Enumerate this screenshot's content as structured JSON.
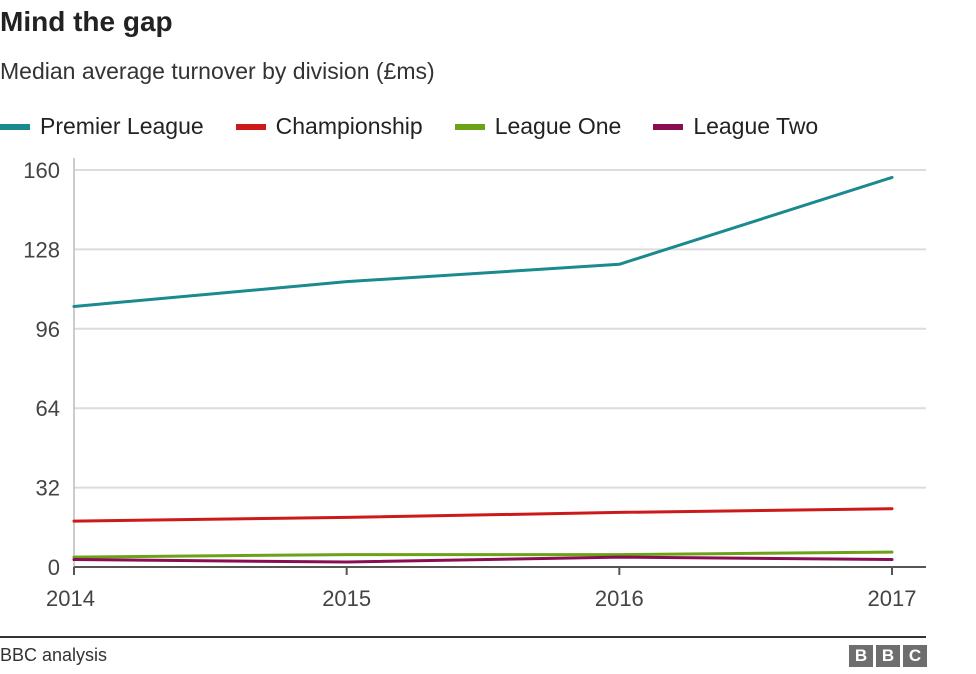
{
  "chart_data": {
    "type": "line",
    "title": "Mind the gap",
    "subtitle": "Median average turnover by division (£ms)",
    "categories": [
      "2014",
      "2015",
      "2016",
      "2017"
    ],
    "ylim": [
      0,
      160
    ],
    "yticks": [
      0,
      32,
      64,
      96,
      128,
      160
    ],
    "grid": true,
    "legend_position": "top-left",
    "series": [
      {
        "name": "Premier League",
        "color": "#1a8a8f",
        "values": [
          105,
          115,
          122,
          157
        ]
      },
      {
        "name": "Championship",
        "color": "#cc1a1a",
        "values": [
          18.5,
          20,
          22,
          23.5
        ]
      },
      {
        "name": "League One",
        "color": "#6ba217",
        "values": [
          4,
          5,
          5,
          6
        ]
      },
      {
        "name": "League Two",
        "color": "#8a0d52",
        "values": [
          3,
          2,
          4,
          3
        ]
      }
    ]
  },
  "source": "BBC analysis",
  "logo": [
    "B",
    "B",
    "C"
  ]
}
